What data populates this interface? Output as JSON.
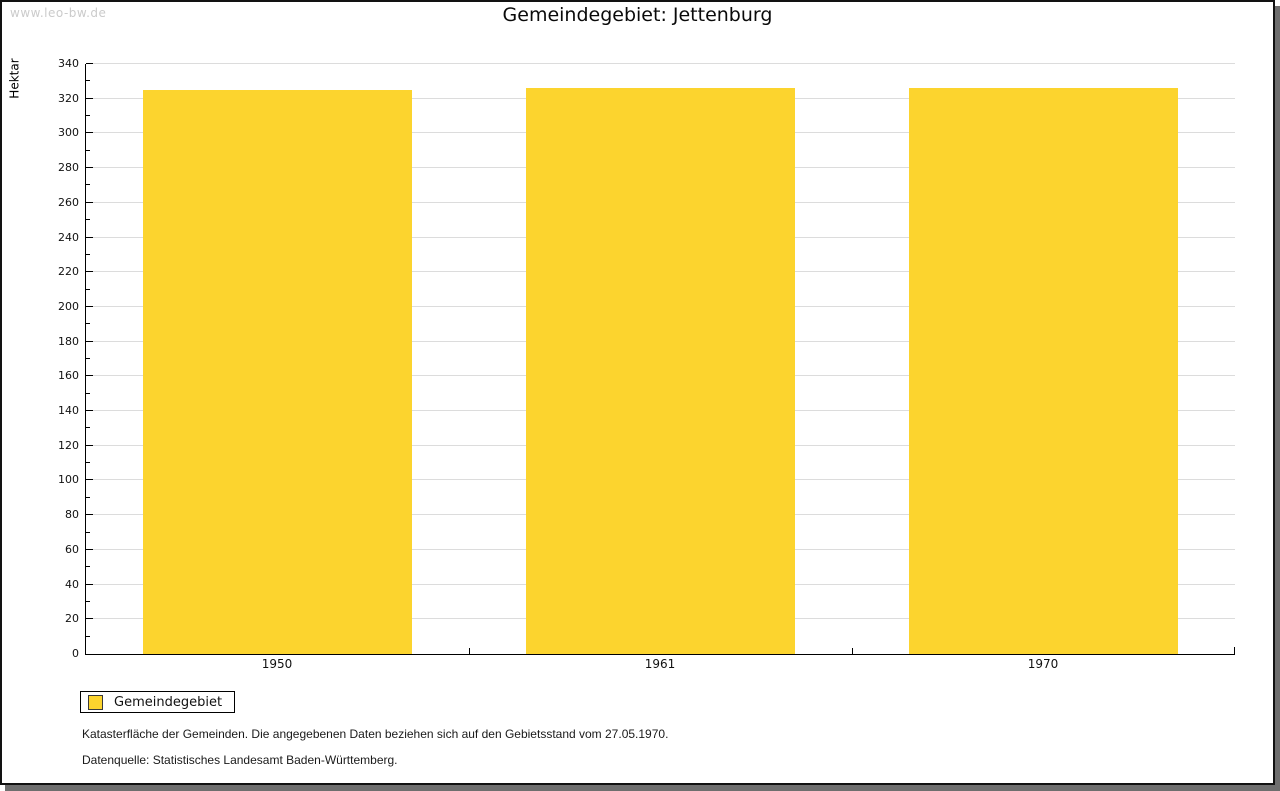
{
  "watermark": "www.leo-bw.de",
  "chart_data": {
    "type": "bar",
    "title": "Gemeindegebiet: Jettenburg",
    "xlabel": "",
    "ylabel": "Hektar",
    "categories": [
      "1950",
      "1961",
      "1970"
    ],
    "series": [
      {
        "name": "Gemeindegebiet",
        "values": [
          325,
          326,
          326
        ],
        "color": "#FCD42E"
      }
    ],
    "ylim": [
      0,
      340
    ],
    "yticks": [
      0,
      20,
      40,
      60,
      80,
      100,
      120,
      140,
      160,
      180,
      200,
      220,
      240,
      260,
      280,
      300,
      320,
      340
    ],
    "yminor_step": 10,
    "grid": "horizontal major, light gray",
    "legend_position": "bottom-left"
  },
  "legend": {
    "label": "Gemeindegebiet",
    "swatch_color": "#FCD42E"
  },
  "notes": [
    "Katasterfläche der Gemeinden. Die angegebenen Daten beziehen sich auf den Gebietsstand vom 27.05.1970.",
    "Datenquelle: Statistisches Landesamt Baden-Württemberg."
  ],
  "colors": {
    "bar": "#FCD42E",
    "gridline": "#dcdcdc",
    "axis": "#000000",
    "frame_border": "#121212",
    "frame_shadow": "#6e6e6e",
    "watermark": "#cbcbcb"
  }
}
